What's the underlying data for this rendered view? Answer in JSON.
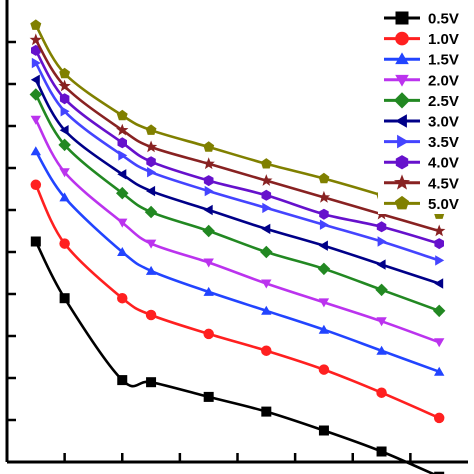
{
  "chart_data": {
    "type": "line",
    "title": "",
    "xlabel": "",
    "ylabel": "",
    "x": [
      1,
      2,
      4,
      5,
      7,
      9,
      11,
      13,
      15
    ],
    "xlim": [
      0,
      16
    ],
    "ylim": [
      0,
      22
    ],
    "grid": false,
    "legend_position": "top-right",
    "series": [
      {
        "name": "0.5V",
        "color": "#000000",
        "marker": "square",
        "values": [
          10.5,
          7.8,
          3.9,
          3.8,
          3.1,
          2.4,
          1.5,
          0.5,
          -0.7
        ]
      },
      {
        "name": "1.0V",
        "color": "#ff2020",
        "marker": "circle",
        "values": [
          13.2,
          10.4,
          7.8,
          7.0,
          6.1,
          5.3,
          4.4,
          3.3,
          2.1
        ]
      },
      {
        "name": "1.5V",
        "color": "#2244ff",
        "marker": "triangle-up",
        "values": [
          14.8,
          12.6,
          10.0,
          9.1,
          8.1,
          7.2,
          6.3,
          5.3,
          4.3
        ]
      },
      {
        "name": "2.0V",
        "color": "#bb33ee",
        "marker": "triangle-down",
        "values": [
          16.3,
          13.8,
          11.4,
          10.4,
          9.5,
          8.5,
          7.6,
          6.7,
          5.7
        ]
      },
      {
        "name": "2.5V",
        "color": "#228822",
        "marker": "diamond",
        "values": [
          17.5,
          15.1,
          12.8,
          11.9,
          11.0,
          10.0,
          9.2,
          8.2,
          7.2
        ]
      },
      {
        "name": "3.0V",
        "color": "#000088",
        "marker": "triangle-left",
        "values": [
          18.2,
          15.8,
          13.7,
          12.9,
          12.0,
          11.1,
          10.3,
          9.4,
          8.5
        ]
      },
      {
        "name": "3.5V",
        "color": "#4444ff",
        "marker": "triangle-right",
        "values": [
          19.0,
          16.7,
          14.6,
          13.8,
          12.9,
          12.1,
          11.3,
          10.5,
          9.6
        ]
      },
      {
        "name": "4.0V",
        "color": "#6611cc",
        "marker": "hexagon",
        "values": [
          19.6,
          17.3,
          15.2,
          14.3,
          13.4,
          12.7,
          11.8,
          11.2,
          10.4
        ]
      },
      {
        "name": "4.5V",
        "color": "#882222",
        "marker": "star",
        "values": [
          20.1,
          17.9,
          15.8,
          15.0,
          14.2,
          13.4,
          12.6,
          11.8,
          11.0
        ]
      },
      {
        "name": "5.0V",
        "color": "#808000",
        "marker": "pentagon",
        "values": [
          20.8,
          18.5,
          16.5,
          15.8,
          15.0,
          14.2,
          13.5,
          12.7,
          11.8
        ]
      }
    ]
  }
}
